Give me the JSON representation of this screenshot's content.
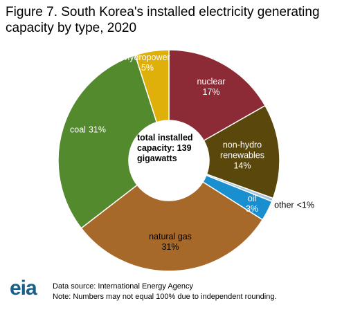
{
  "chart_data": {
    "type": "donut",
    "title": "Figure 7. South Korea's installed electricity generating capacity by type, 2020",
    "categories": [
      "nuclear",
      "non-hydro renewables",
      "other",
      "oil",
      "natural gas",
      "coal",
      "hydropower"
    ],
    "values": [
      17,
      14,
      0.5,
      3,
      31,
      31,
      5
    ],
    "value_labels": [
      "17%",
      "14%",
      "<1%",
      "3%",
      "31%",
      "31%",
      "5%"
    ],
    "colors": [
      "#8c2a36",
      "#5a470b",
      "#a9c6dd",
      "#1a8fcf",
      "#a7692a",
      "#548a2e",
      "#e0b00a"
    ],
    "center_label": "total installed capacity: 139 gigawatts",
    "source": "Data source: International Energy Agency",
    "note": "Note: Numbers may not equal 100% due to independent rounding.",
    "logo": "eia"
  }
}
